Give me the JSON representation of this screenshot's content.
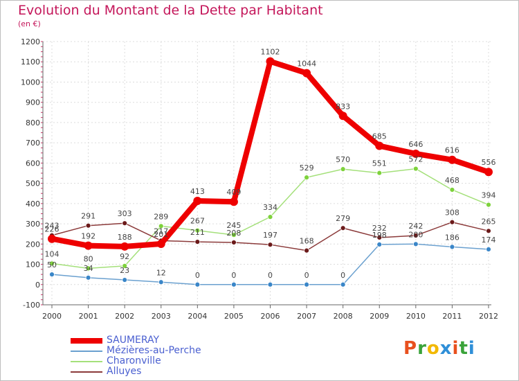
{
  "title": "Evolution du Montant de la Dette par Habitant",
  "subtitle": "(en €)",
  "logo": {
    "letters": [
      "P",
      "r",
      "o",
      "x",
      "i",
      "t",
      "i"
    ],
    "colors": [
      "#e8501e",
      "#3aa33a",
      "#f2b800",
      "#2f8fd8",
      "#e8501e",
      "#3aa33a",
      "#2f8fd8"
    ]
  },
  "chart_data": {
    "type": "line",
    "x": [
      "2000",
      "2001",
      "2002",
      "2003",
      "2004",
      "2005",
      "2006",
      "2007",
      "2008",
      "2009",
      "2010",
      "2011",
      "2012"
    ],
    "ylim": [
      -100,
      1200
    ],
    "yticks": [
      -100,
      0,
      100,
      200,
      300,
      400,
      500,
      600,
      700,
      800,
      900,
      1000,
      1100,
      1200
    ],
    "grid": true,
    "legend_position": "bottom-left",
    "series": [
      {
        "name": "SAUMERAY",
        "color": "#ee0000",
        "marker": "#ee0000",
        "values": [
          226,
          192,
          188,
          201,
          413,
          409,
          1102,
          1044,
          833,
          685,
          646,
          616,
          556
        ]
      },
      {
        "name": "Mézières-au-Perche",
        "color": "#6aa0cf",
        "marker": "#3a86c8",
        "values": [
          50,
          34,
          23,
          12,
          0,
          0,
          0,
          0,
          0,
          198,
          200,
          186,
          174
        ]
      },
      {
        "name": "Charonville",
        "color": "#a4e07a",
        "marker": "#7ed23c",
        "values": [
          104,
          80,
          92,
          289,
          267,
          245,
          334,
          529,
          570,
          551,
          572,
          468,
          394
        ]
      },
      {
        "name": "Alluyes",
        "color": "#8b3a3a",
        "marker": "#6b1a1a",
        "values": [
          243,
          291,
          303,
          217,
          211,
          208,
          197,
          168,
          279,
          232,
          242,
          308,
          265
        ]
      }
    ]
  }
}
